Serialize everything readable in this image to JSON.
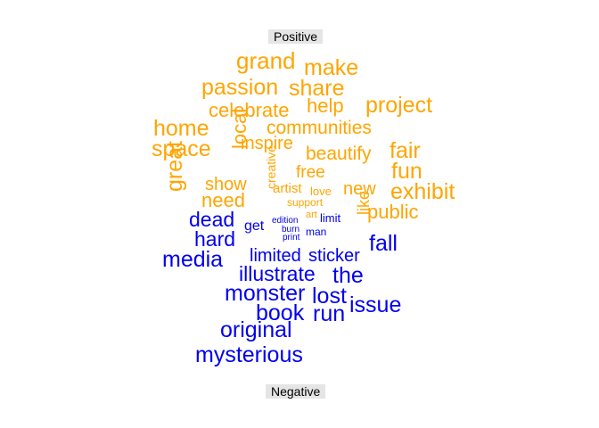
{
  "chart_data": {
    "type": "wordcloud",
    "groups": [
      {
        "name": "Positive",
        "color": "#FFA500"
      },
      {
        "name": "Negative",
        "color": "#0000EE"
      }
    ],
    "words": [
      {
        "word": "grand",
        "group": "Positive",
        "weight": 26
      },
      {
        "word": "make",
        "group": "Positive",
        "weight": 25
      },
      {
        "word": "passion",
        "group": "Positive",
        "weight": 25
      },
      {
        "word": "share",
        "group": "Positive",
        "weight": 25
      },
      {
        "word": "project",
        "group": "Positive",
        "weight": 25
      },
      {
        "word": "celebrate",
        "group": "Positive",
        "weight": 22
      },
      {
        "word": "help",
        "group": "Positive",
        "weight": 22
      },
      {
        "word": "home",
        "group": "Positive",
        "weight": 25
      },
      {
        "word": "communities",
        "group": "Positive",
        "weight": 21
      },
      {
        "word": "space",
        "group": "Positive",
        "weight": 25
      },
      {
        "word": "inspire",
        "group": "Positive",
        "weight": 20
      },
      {
        "word": "local",
        "group": "Positive",
        "weight": 22
      },
      {
        "word": "beautify",
        "group": "Positive",
        "weight": 21
      },
      {
        "word": "fair",
        "group": "Positive",
        "weight": 25
      },
      {
        "word": "fun",
        "group": "Positive",
        "weight": 25
      },
      {
        "word": "free",
        "group": "Positive",
        "weight": 19
      },
      {
        "word": "great",
        "group": "Positive",
        "weight": 25
      },
      {
        "word": "show",
        "group": "Positive",
        "weight": 20
      },
      {
        "word": "creative",
        "group": "Positive",
        "weight": 14
      },
      {
        "word": "artist",
        "group": "Positive",
        "weight": 15
      },
      {
        "word": "love",
        "group": "Positive",
        "weight": 13
      },
      {
        "word": "new",
        "group": "Positive",
        "weight": 20
      },
      {
        "word": "exhibit",
        "group": "Positive",
        "weight": 25
      },
      {
        "word": "need",
        "group": "Positive",
        "weight": 22
      },
      {
        "word": "support",
        "group": "Positive",
        "weight": 12
      },
      {
        "word": "art",
        "group": "Positive",
        "weight": 11
      },
      {
        "word": "like",
        "group": "Positive",
        "weight": 18
      },
      {
        "word": "public",
        "group": "Positive",
        "weight": 22
      },
      {
        "word": "dead",
        "group": "Negative",
        "weight": 23
      },
      {
        "word": "edition",
        "group": "Negative",
        "weight": 10
      },
      {
        "word": "limit",
        "group": "Negative",
        "weight": 13
      },
      {
        "word": "get",
        "group": "Negative",
        "weight": 16
      },
      {
        "word": "burn",
        "group": "Negative",
        "weight": 10
      },
      {
        "word": "man",
        "group": "Negative",
        "weight": 12
      },
      {
        "word": "hard",
        "group": "Negative",
        "weight": 23
      },
      {
        "word": "print",
        "group": "Negative",
        "weight": 10
      },
      {
        "word": "fall",
        "group": "Negative",
        "weight": 25
      },
      {
        "word": "media",
        "group": "Negative",
        "weight": 25
      },
      {
        "word": "limited",
        "group": "Negative",
        "weight": 20
      },
      {
        "word": "sticker",
        "group": "Negative",
        "weight": 20
      },
      {
        "word": "illustrate",
        "group": "Negative",
        "weight": 23
      },
      {
        "word": "the",
        "group": "Negative",
        "weight": 25
      },
      {
        "word": "monster",
        "group": "Negative",
        "weight": 25
      },
      {
        "word": "lost",
        "group": "Negative",
        "weight": 25
      },
      {
        "word": "issue",
        "group": "Negative",
        "weight": 25
      },
      {
        "word": "book",
        "group": "Negative",
        "weight": 25
      },
      {
        "word": "run",
        "group": "Negative",
        "weight": 25
      },
      {
        "word": "original",
        "group": "Negative",
        "weight": 25
      },
      {
        "word": "mysterious",
        "group": "Negative",
        "weight": 25
      }
    ]
  }
}
